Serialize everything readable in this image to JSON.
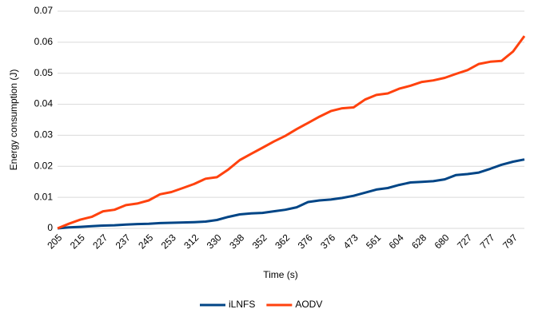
{
  "chart_data": {
    "type": "line",
    "x_label": "Time (s)",
    "y_label": "Energy consumption (J)",
    "categories": [
      "205",
      null,
      "215",
      null,
      "227",
      null,
      "237",
      null,
      "245",
      null,
      "253",
      null,
      "312",
      null,
      "330",
      null,
      "338",
      null,
      "352",
      null,
      "362",
      null,
      "376",
      null,
      "376",
      null,
      "473",
      null,
      "561",
      null,
      "604",
      null,
      "628",
      null,
      "680",
      null,
      "727",
      null,
      "777",
      null,
      "797",
      null
    ],
    "series": [
      {
        "name": "iLNFS",
        "color": "#004586",
        "values": [
          0,
          0.0003,
          0.0005,
          0.0007,
          0.0009,
          0.001,
          0.0012,
          0.0014,
          0.0015,
          0.0017,
          0.0018,
          0.0019,
          0.002,
          0.0022,
          0.0027,
          0.0037,
          0.0045,
          0.0048,
          0.005,
          0.0055,
          0.006,
          0.0068,
          0.0085,
          0.009,
          0.0093,
          0.0098,
          0.0105,
          0.0115,
          0.0125,
          0.013,
          0.014,
          0.0148,
          0.015,
          0.0152,
          0.0158,
          0.0172,
          0.0175,
          0.018,
          0.0192,
          0.0205,
          0.0215,
          0.0222
        ]
      },
      {
        "name": "AODV",
        "color": "#ff420e",
        "values": [
          0,
          0.0015,
          0.0028,
          0.0037,
          0.0055,
          0.006,
          0.0075,
          0.008,
          0.009,
          0.011,
          0.0117,
          0.013,
          0.0143,
          0.016,
          0.0165,
          0.019,
          0.022,
          0.024,
          0.026,
          0.028,
          0.0298,
          0.032,
          0.034,
          0.036,
          0.0378,
          0.0387,
          0.039,
          0.0415,
          0.043,
          0.0435,
          0.045,
          0.046,
          0.0472,
          0.0477,
          0.0485,
          0.0498,
          0.051,
          0.053,
          0.0537,
          0.054,
          0.057,
          0.062
        ]
      }
    ],
    "ylim": [
      0,
      0.07
    ],
    "yticks": [
      0,
      0.01,
      0.02,
      0.03,
      0.04,
      0.05,
      0.06,
      0.07
    ],
    "grid": true,
    "legend": "bottom"
  }
}
